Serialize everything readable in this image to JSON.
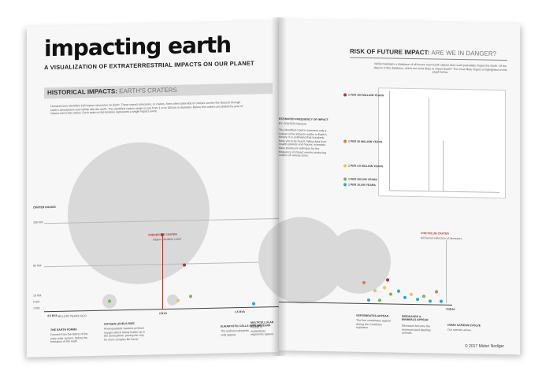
{
  "left": {
    "title": "impacting earth",
    "subtitle": "A VISUALIZATION OF EXTRATERRESTRIAL IMPACTS ON OUR PLANET",
    "section_title": "HISTORICAL IMPACTS:",
    "section_sub": "EARTH'S CRATERS",
    "intro": "Humans have identified 190 impact structures on Earth. These impact structures, or craters, form when asteroids or comets survive the descent through earth's atmosphere and collide with the earth. The identified craters range in size from 1 m to 160 km in diameter. Below, the craters are plotted by year of impact and crater radius. Each point on the timeline represents a single impact event.",
    "axis_label": "CRATER RADIUS",
    "y_ticks": [
      "100 KM",
      "50 KM",
      "10 KM",
      "5 KM",
      "1 KM"
    ],
    "x_ticks": [
      "4.5 BYA",
      "2 BYA",
      "1.5 BYA",
      ".5 BYA",
      "TODAY"
    ],
    "x_caption": "BILLION YEARS AGO",
    "vredefort_label": "VREDEFORT CRATER",
    "vredefort_sub": "largest identified crater",
    "events": [
      {
        "title": "THE EARTH FORMS",
        "text": "Formed from the debris of the early solar system, before the formation of the earth."
      },
      {
        "title": "OXYGEN LEVELS RISE",
        "text": "Photosynthetic bacteria produce oxygen which slowly builds up in the atmosphere, paving the way for more complex life forms."
      },
      {
        "title": "EUKARYOTIC CELLS APPEAR",
        "text": "The earliest eukaryotic cells appear."
      },
      {
        "title": "MULTICELLULAR LIFE APPEARS",
        "text": "Fossils of multicellular organisms appear."
      }
    ]
  },
  "right": {
    "section_title": "RISK OF FUTURE IMPACT:",
    "section_sub": "ARE WE IN DANGER?",
    "intro": "NASA maintains a database of all known near-Earth objects that could potentially impact the Earth. Of the objects in this database, which are most likely to impact Earth? The most likely impact is highlighted on the graph below.",
    "freq_title": "ESTIMATED FREQUENCY OF IMPACT",
    "freq_sub": "BY CRATER RADIUS",
    "freq_text": "The identified craters represent only a subset of the impacts earths in Earth's history. It is estimated that hundreds have yet to be found, hiding data from nearby planets and moons; scientists have produced estimates for the frequency of impact events producing craters of various sizes.",
    "freq_labels": [
      {
        "text": "1 PER 100 MILLION YEARS",
        "color": "#b5322f"
      },
      {
        "text": "1 PER 20 MILLION YEARS",
        "color": "#e07b39"
      },
      {
        "text": "1 PER 4.5 MILLION YEARS",
        "color": "#f0c24b"
      },
      {
        "text": "1 PER 200,000 YEARS",
        "color": "#7ab648"
      },
      {
        "text": "1 PER 10,000 YEARS",
        "color": "#2aa9c9"
      }
    ],
    "chicxulub_label": "CHICXULUB CRATER",
    "chicxulub_sub": "felt faunal extinction of dinosaurs",
    "events": [
      {
        "title": "VERTEBRATES APPEAR",
        "text": "The first vertebrates appear during the Cambrian explosion."
      },
      {
        "title": "DINOSAURS & MAMMALS APPEAR",
        "text": "Dinosaurs become the dominant land dwelling animals."
      },
      {
        "title": "HOMO SAPIENS EVOLVE",
        "text": "Our species arises."
      }
    ],
    "today_label": "TODAY",
    "copyright": "© 2017 Midori Nediger"
  }
}
